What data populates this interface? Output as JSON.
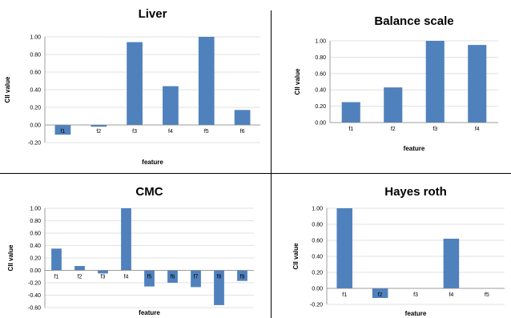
{
  "chart_data": [
    {
      "type": "bar",
      "title": "Liver",
      "categories": [
        "f1",
        "f2",
        "f3",
        "f4",
        "f5",
        "f6"
      ],
      "values": [
        -0.11,
        -0.02,
        0.94,
        0.44,
        1.0,
        0.17
      ],
      "xlabel": "feature",
      "ylabel": "CII value",
      "ylim": [
        -0.2,
        1.0
      ],
      "yticks": [
        "-0.20",
        "0.00",
        "0.20",
        "0.40",
        "0.60",
        "0.80",
        "1.00"
      ],
      "grid": true,
      "color": "#4f81bd"
    },
    {
      "type": "bar",
      "title": "Balance scale",
      "categories": [
        "f1",
        "f2",
        "f3",
        "f4"
      ],
      "values": [
        0.25,
        0.43,
        1.0,
        0.95
      ],
      "xlabel": "feature",
      "ylabel": "CII value",
      "ylim": [
        0,
        1.0
      ],
      "yticks": [
        "0.00",
        "0.20",
        "0.40",
        "0.60",
        "0.80",
        "1.00"
      ],
      "grid": true,
      "color": "#4f81bd"
    },
    {
      "type": "bar",
      "title": "CMC",
      "categories": [
        "f1",
        "f2",
        "f3",
        "f4",
        "f5",
        "f6",
        "f7",
        "f8",
        "f9"
      ],
      "values": [
        0.35,
        0.07,
        -0.05,
        1.0,
        -0.26,
        -0.2,
        -0.27,
        -0.56,
        -0.17
      ],
      "xlabel": "feature",
      "ylabel": "CII value",
      "ylim": [
        -0.6,
        1.0
      ],
      "yticks": [
        "-0.60",
        "-0.40",
        "-0.20",
        "0.00",
        "0.20",
        "0.40",
        "0.60",
        "0.80",
        "1.00"
      ],
      "grid": true,
      "color": "#4f81bd"
    },
    {
      "type": "bar",
      "title": "Hayes roth",
      "categories": [
        "f1",
        "f2",
        "f3",
        "f4",
        "f5"
      ],
      "values": [
        1.0,
        -0.12,
        0.0,
        0.62,
        0.0
      ],
      "xlabel": "feature",
      "ylabel": "CII value",
      "ylim": [
        -0.2,
        1.0
      ],
      "yticks": [
        "-0.20",
        "0.00",
        "0.20",
        "0.40",
        "0.60",
        "0.80",
        "1.00"
      ],
      "grid": true,
      "color": "#4f81bd"
    }
  ]
}
